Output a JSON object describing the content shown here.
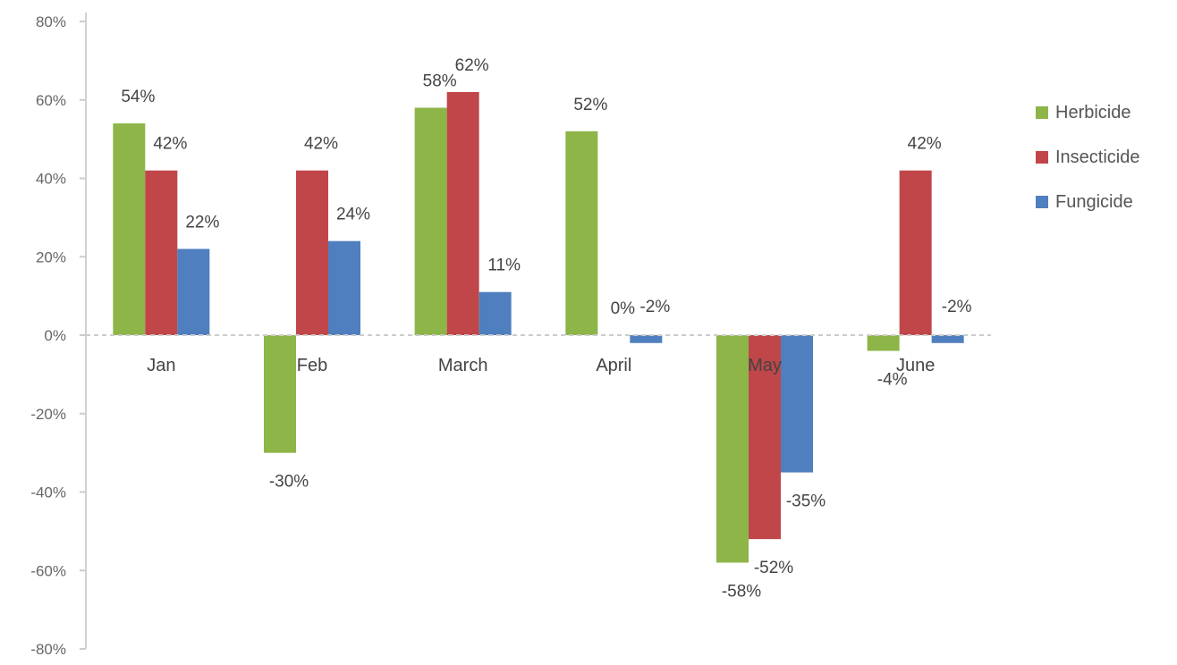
{
  "chart_data": {
    "type": "bar",
    "title": "",
    "xlabel": "",
    "ylabel": "",
    "categories": [
      "Jan",
      "Feb",
      "March",
      "April",
      "May",
      "June"
    ],
    "series": [
      {
        "name": "Herbicide",
        "color": "#8db547",
        "values": [
          54,
          -30,
          58,
          52,
          -58,
          -4
        ]
      },
      {
        "name": "Insecticide",
        "color": "#c0464a",
        "values": [
          42,
          42,
          62,
          0,
          -52,
          42
        ]
      },
      {
        "name": "Fungicide",
        "color": "#4f7fbe",
        "values": [
          22,
          24,
          11,
          -2,
          -35,
          -2
        ]
      }
    ],
    "data_labels": [
      [
        "54%",
        "-30%",
        "58%",
        "52%",
        "-58%",
        "-4%"
      ],
      [
        "42%",
        "42%",
        "62%",
        "0%",
        "-52%",
        "42%"
      ],
      [
        "22%",
        "24%",
        "11%",
        "-2%",
        "-35%",
        "-2%"
      ]
    ],
    "ylim": [
      -80,
      80
    ],
    "yticks": [
      80,
      60,
      40,
      20,
      0,
      -20,
      -40,
      -60,
      -80
    ],
    "ytick_labels": [
      "80%",
      "60%",
      "40%",
      "20%",
      "0%",
      "-20%",
      "-40%",
      "-60%",
      "-80%"
    ],
    "grid": false,
    "legend": "right"
  }
}
